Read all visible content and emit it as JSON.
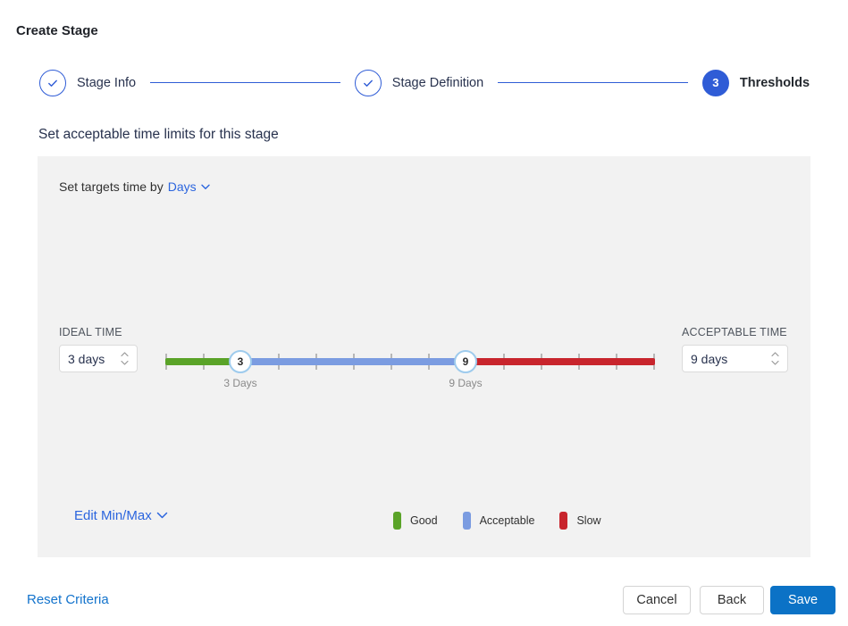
{
  "page": {
    "title": "Create Stage"
  },
  "stepper": {
    "steps": [
      {
        "label": "Stage Info",
        "state": "complete"
      },
      {
        "label": "Stage Definition",
        "state": "complete"
      },
      {
        "label": "Thresholds",
        "state": "active",
        "number": "3"
      }
    ]
  },
  "section": {
    "heading": "Set acceptable time limits for this stage"
  },
  "panel": {
    "targets": {
      "prefix": "Set targets time by",
      "unit": "Days"
    },
    "ideal": {
      "label": "IDEAL TIME",
      "value": "3 days"
    },
    "acceptable": {
      "label": "ACCEPTABLE TIME",
      "value": "9 days"
    },
    "slider": {
      "tick_count": 14,
      "range_days": [
        1,
        14
      ],
      "min_handle": {
        "value": "3",
        "label": "3 Days"
      },
      "max_handle": {
        "value": "9",
        "label": "9 Days"
      },
      "segments": [
        {
          "name": "Good",
          "from_day": 1,
          "to_day": 3,
          "color": "#5aa328"
        },
        {
          "name": "Acceptable",
          "from_day": 3,
          "to_day": 9,
          "color": "#7b9ce1"
        },
        {
          "name": "Slow",
          "from_day": 9,
          "to_day": 14,
          "color": "#c8252d"
        }
      ]
    },
    "edit_minmax_label": "Edit Min/Max",
    "legend": [
      {
        "label": "Good",
        "color": "#5aa328"
      },
      {
        "label": "Acceptable",
        "color": "#7b9ce1"
      },
      {
        "label": "Slow",
        "color": "#c8252d"
      }
    ]
  },
  "footer": {
    "reset_label": "Reset Criteria",
    "cancel_label": "Cancel",
    "back_label": "Back",
    "save_label": "Save"
  },
  "colors": {
    "accent_blue": "#2f5cd6",
    "link_blue": "#2b65de",
    "action_blue": "#0b72c6",
    "panel_bg": "#f2f2f2",
    "handle_ring": "#9ecbed"
  }
}
